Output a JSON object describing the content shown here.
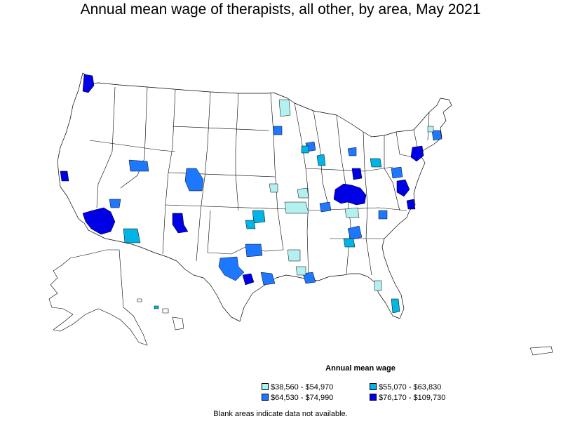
{
  "title": "Annual mean wage of therapists, all other, by area, May 2021",
  "legend": {
    "title": "Annual mean wage",
    "items": [
      {
        "label": "$38,560 - $54,970",
        "color": "#b3f0f0"
      },
      {
        "label": "$55,070 - $63,830",
        "color": "#00b4e6"
      },
      {
        "label": "$64,530 - $74,990",
        "color": "#1e78ff"
      },
      {
        "label": "$76,170 - $109,730",
        "color": "#0000e6"
      }
    ]
  },
  "note": "Blank areas indicate data not available.",
  "colors": {
    "outline": "#000000",
    "blank": "#ffffff"
  }
}
